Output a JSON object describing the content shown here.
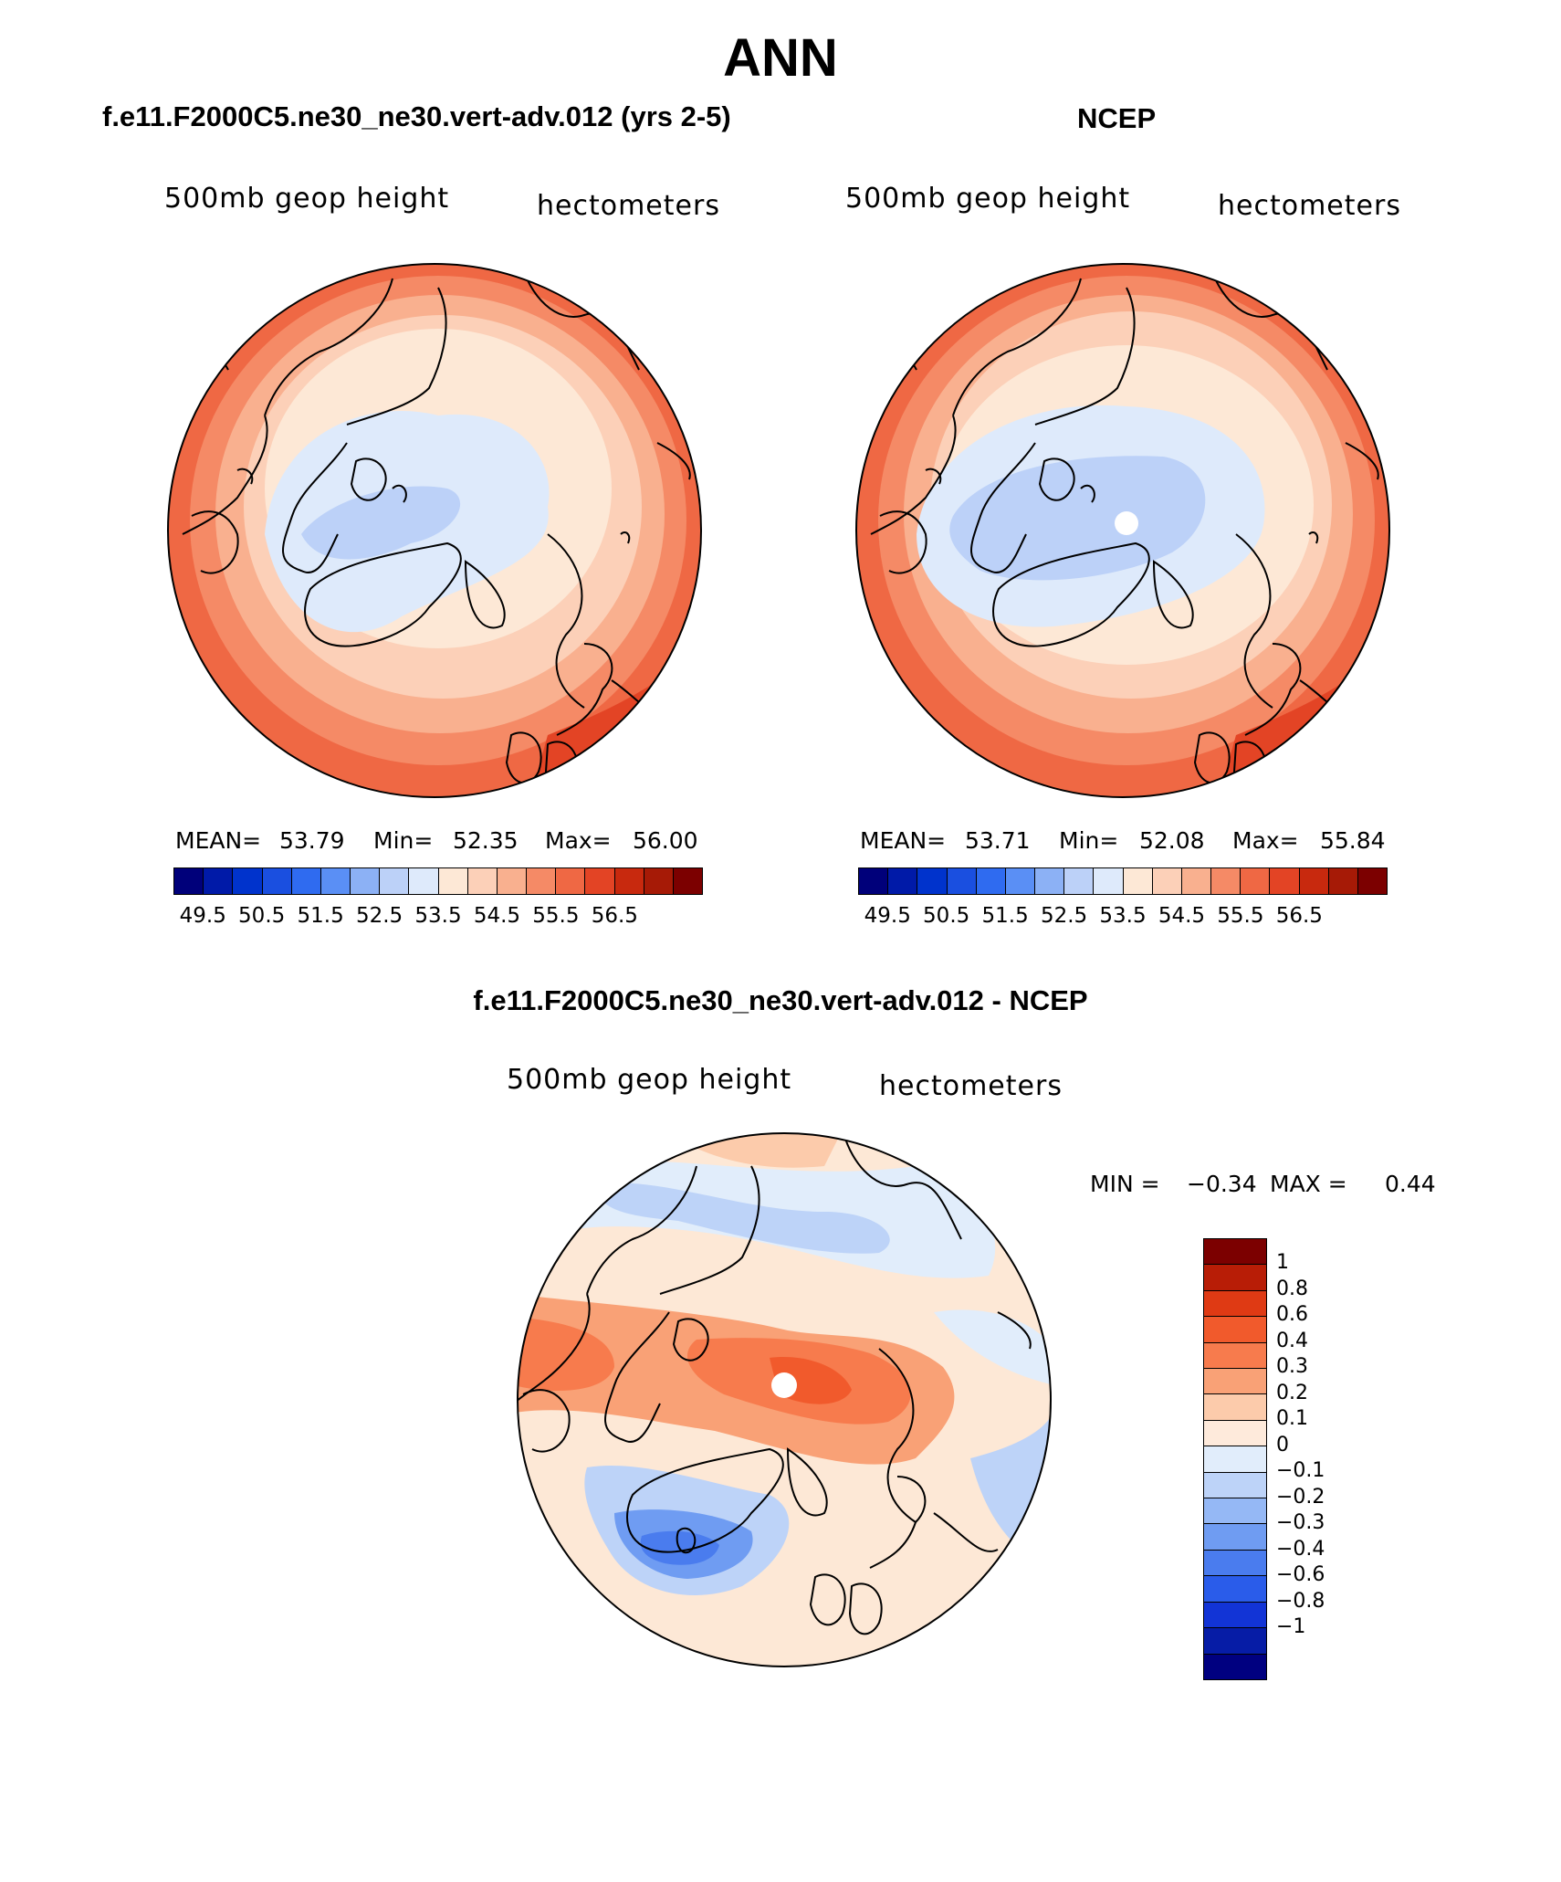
{
  "title": "ANN",
  "palette_abs": [
    "#00007a",
    "#001aa8",
    "#0033cc",
    "#1a4fe0",
    "#2f6bf0",
    "#5a8ff5",
    "#8cb1f5",
    "#bcd1f8",
    "#deeafb",
    "#fde8d6",
    "#fcd0b8",
    "#f9b08f",
    "#f58a66",
    "#ef6844",
    "#e34425",
    "#c8290e",
    "#a61a06",
    "#7c0000"
  ],
  "palette_diff": [
    "#7c0000",
    "#b81d06",
    "#df3a14",
    "#f15a2c",
    "#f77b4d",
    "#f9a176",
    "#fccbab",
    "#feeadb",
    "#e1edfb",
    "#bdd3f8",
    "#95b8f5",
    "#6f9cf2",
    "#4a7cee",
    "#2a5cea",
    "#1234d6",
    "#061ca6",
    "#000080"
  ],
  "panels": [
    {
      "header": "f.e11.F2000C5.ne30_ne30.vert-adv.012 (yrs 2-5)",
      "var_label": "500mb  geop  height",
      "units_label": "hectometers",
      "mean_label": "MEAN=",
      "mean_value": "53.79",
      "min_label": "Min=",
      "min_value": "52.35",
      "max_label": "Max=",
      "max_value": "56.00",
      "ticks": [
        "49.5",
        "50.5",
        "51.5",
        "52.5",
        "53.5",
        "54.5",
        "55.5",
        "56.5"
      ]
    },
    {
      "header": "NCEP",
      "var_label": "500mb  geop  height",
      "units_label": "hectometers",
      "mean_label": "MEAN=",
      "mean_value": "53.71",
      "min_label": "Min=",
      "min_value": "52.08",
      "max_label": "Max=",
      "max_value": "55.84",
      "ticks": [
        "49.5",
        "50.5",
        "51.5",
        "52.5",
        "53.5",
        "54.5",
        "55.5",
        "56.5"
      ]
    }
  ],
  "diff": {
    "header": "f.e11.F2000C5.ne30_ne30.vert-adv.012 - NCEP",
    "var_label": "500mb  geop  height",
    "units_label": "hectometers",
    "min_label": "MIN =",
    "min_value": "−0.34",
    "max_label": "MAX =",
    "max_value": "0.44",
    "ticks": [
      "1",
      "0.8",
      "0.6",
      "0.4",
      "0.3",
      "0.2",
      "0.1",
      "0",
      "−0.1",
      "−0.2",
      "−0.3",
      "−0.4",
      "−0.6",
      "−0.8",
      "−1"
    ]
  }
}
